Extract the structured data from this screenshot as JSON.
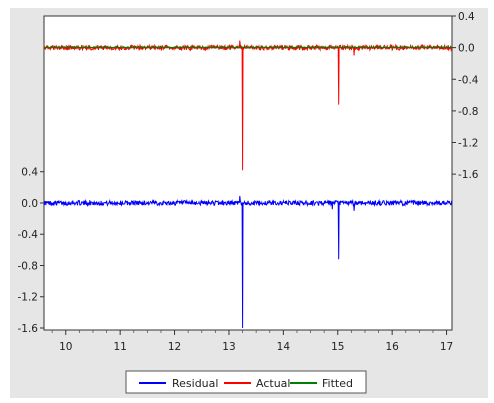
{
  "chart_data": {
    "type": "line",
    "x_ticks": [
      "10",
      "11",
      "12",
      "13",
      "14",
      "15",
      "16",
      "17"
    ],
    "xlim": [
      9.6,
      17.1
    ],
    "right_axis": {
      "ticks": [
        "0.4",
        "0.0",
        "-0.4",
        "-0.8",
        "-1.2",
        "-1.6"
      ],
      "ylim": [
        -1.75,
        0.4
      ]
    },
    "left_axis": {
      "ticks": [
        "0.4",
        "0.0",
        "-0.4",
        "-0.8",
        "-1.2",
        "-1.6"
      ],
      "ylim": [
        -1.6,
        0.55
      ]
    },
    "grid": false,
    "legend_position": "bottom",
    "series": [
      {
        "name": "Residual",
        "axis": "left",
        "color": "#0000ff",
        "noise_amplitude": 0.03,
        "spikes": [
          {
            "x": 13.25,
            "y": -1.6
          },
          {
            "x": 13.2,
            "y": 0.09
          },
          {
            "x": 15.02,
            "y": -0.72
          },
          {
            "x": 15.3,
            "y": -0.1
          },
          {
            "x": 14.9,
            "y": -0.08
          }
        ]
      },
      {
        "name": "Actual",
        "axis": "right",
        "color": "#ff0000",
        "noise_amplitude": 0.03,
        "spikes": [
          {
            "x": 13.25,
            "y": -1.55
          },
          {
            "x": 13.2,
            "y": 0.09
          },
          {
            "x": 15.02,
            "y": -0.72
          },
          {
            "x": 15.3,
            "y": -0.1
          }
        ]
      },
      {
        "name": "Fitted",
        "axis": "right",
        "color": "#008000",
        "constant": 0.0
      }
    ]
  },
  "legend": {
    "items": [
      {
        "label": "Residual",
        "color": "#0000ff"
      },
      {
        "label": "Actual",
        "color": "#ff0000"
      },
      {
        "label": "Fitted",
        "color": "#008000"
      }
    ]
  }
}
